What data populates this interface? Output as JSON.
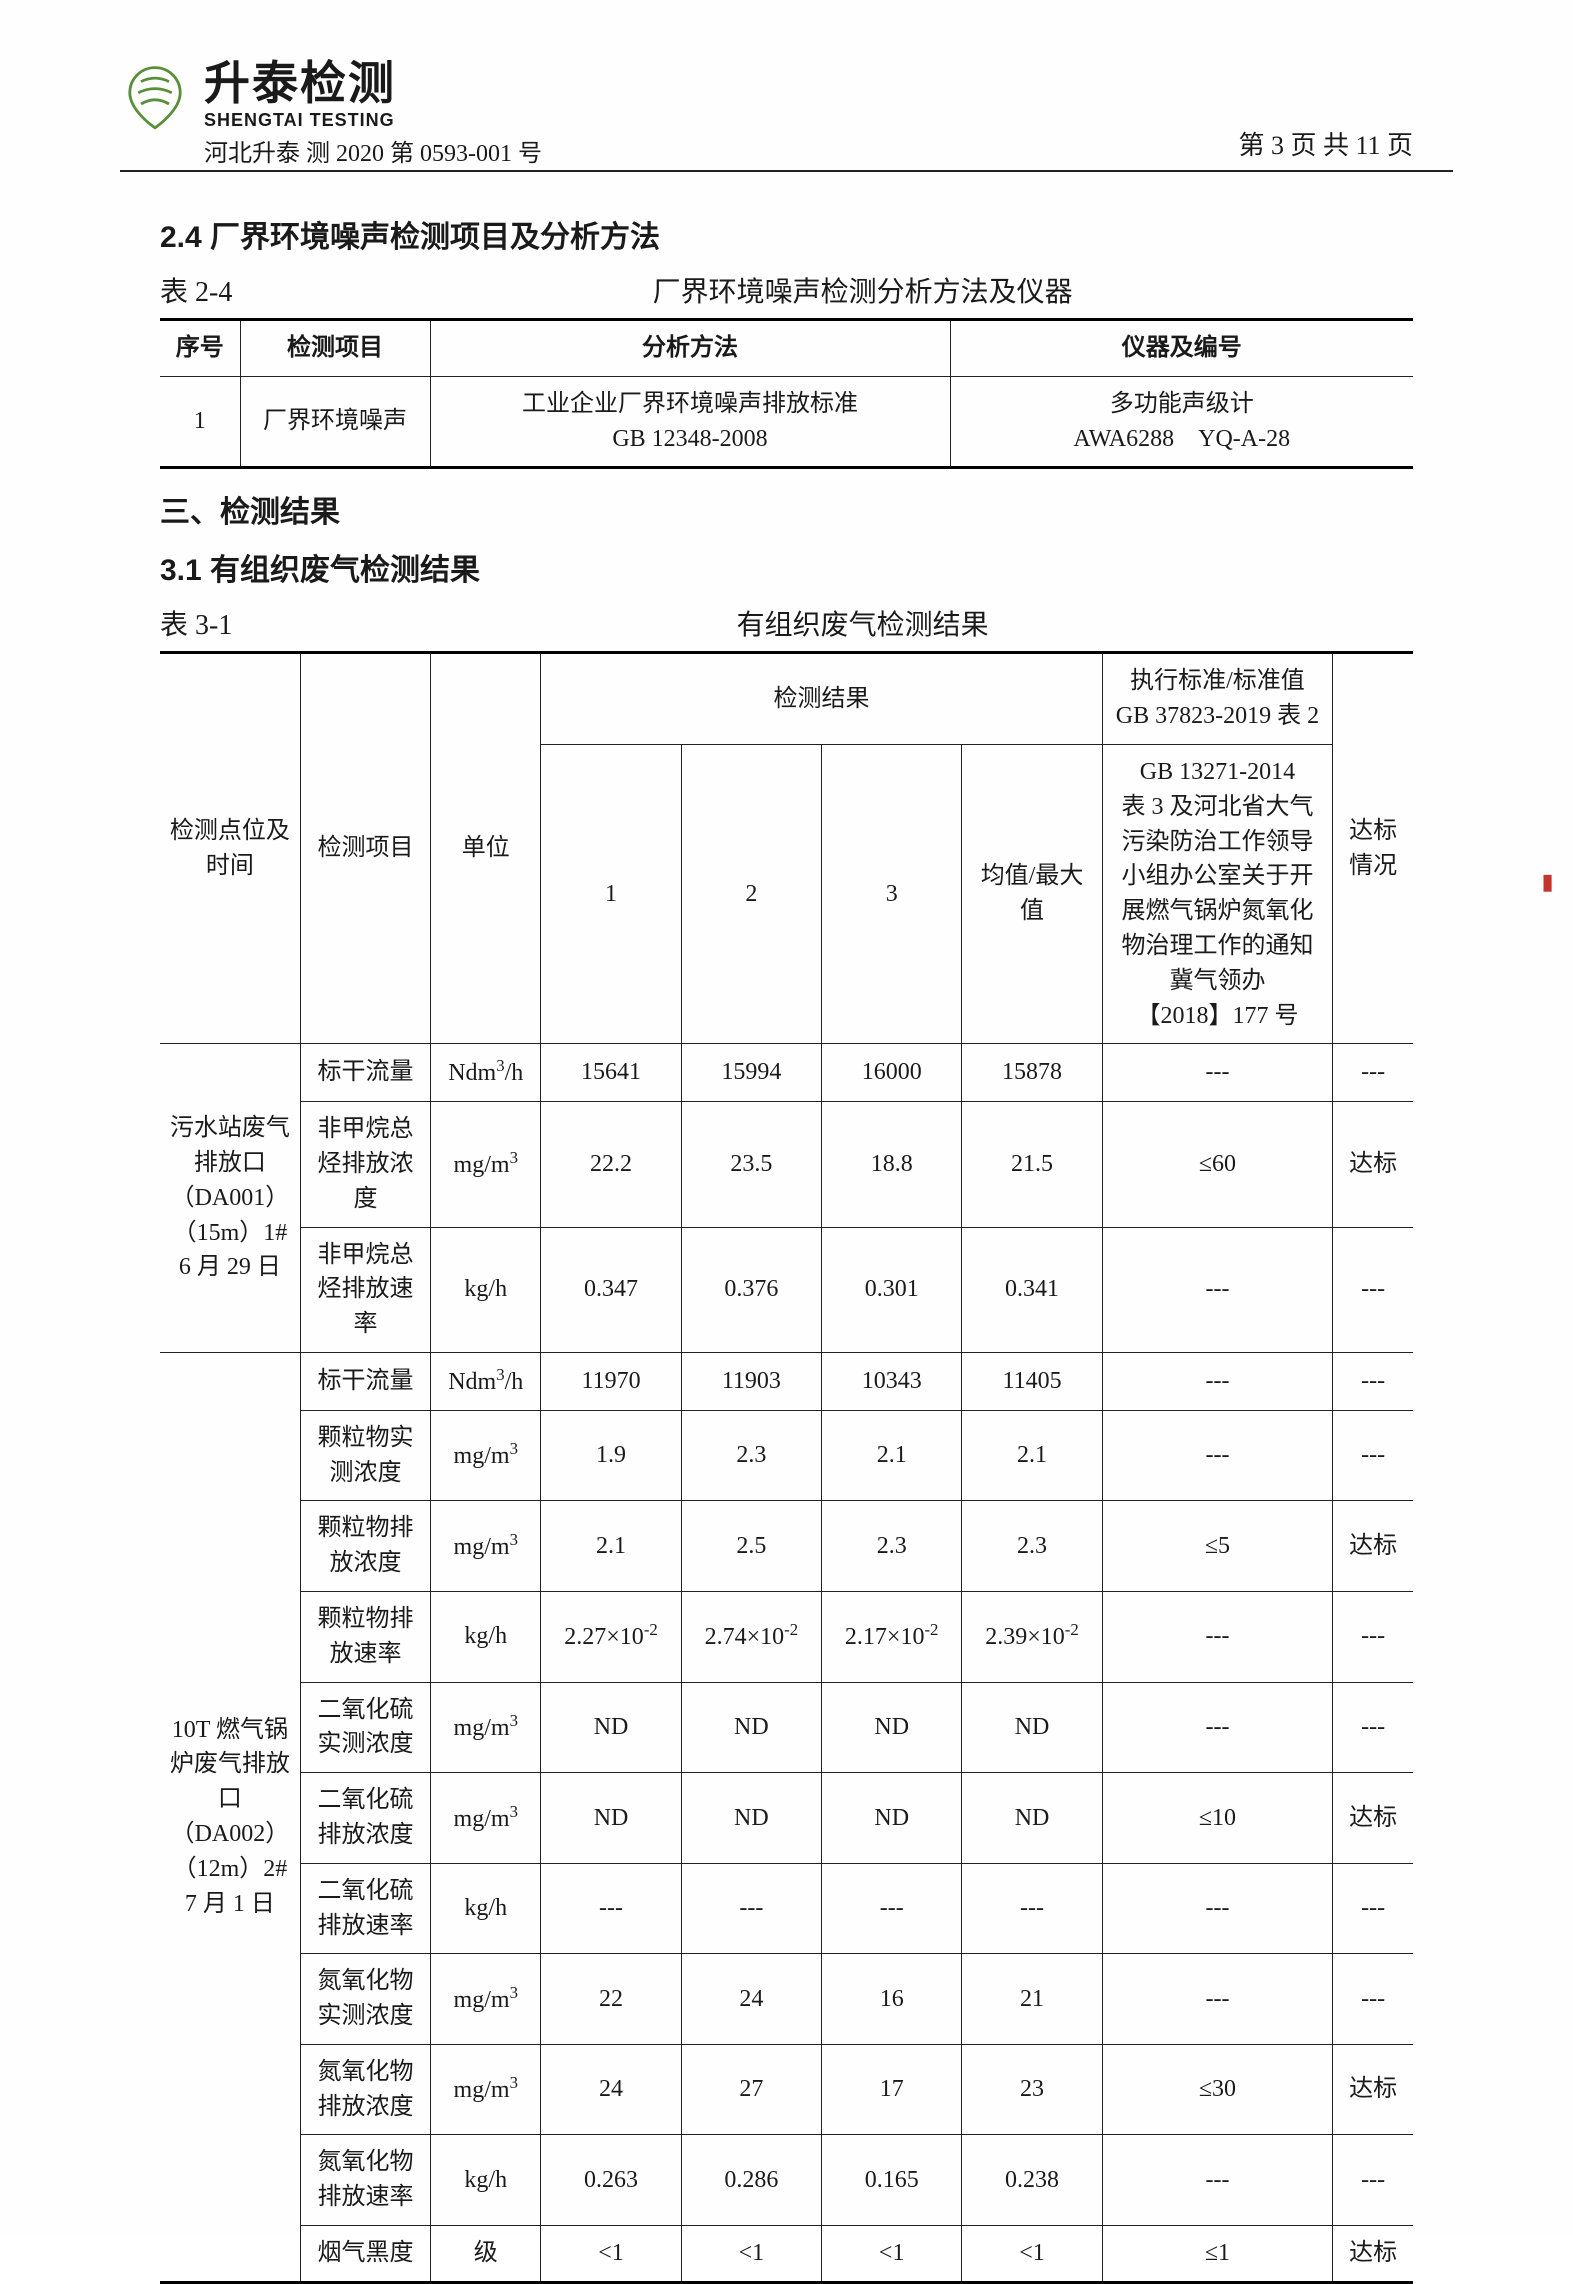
{
  "header": {
    "brand_cn": "升泰检测",
    "brand_en": "SHENGTAI TESTING",
    "doc_id": "河北升泰 测 2020 第 0593-001 号",
    "page_num": "第 3 页 共 11 页",
    "logo_color": "#5a8f3a"
  },
  "s24": {
    "heading": "2.4 厂界环境噪声检测项目及分析方法",
    "table_label": "表 2-4",
    "table_caption": "厂界环境噪声检测分析方法及仪器",
    "columns": [
      "序号",
      "检测项目",
      "分析方法",
      "仪器及编号"
    ],
    "row": {
      "no": "1",
      "item": "厂界环境噪声",
      "method_l1": "工业企业厂界环境噪声排放标准",
      "method_l2": "GB 12348-2008",
      "instr_l1": "多功能声级计",
      "instr_l2": "AWA6288　YQ-A-28"
    },
    "col_widths": [
      "80px",
      "190px",
      "520px",
      "auto"
    ]
  },
  "s3": {
    "heading": "三、检测结果",
    "sub": "3.1 有组织废气检测结果",
    "table_label": "表 3-1",
    "table_caption": "有组织废气检测结果",
    "col_widths": [
      "140px",
      "130px",
      "110px",
      "140px",
      "140px",
      "140px",
      "140px",
      "230px",
      "80px"
    ],
    "header": {
      "loc": "检测点位及时间",
      "item": "检测项目",
      "unit": "单位",
      "results": "检测结果",
      "c1": "1",
      "c2": "2",
      "c3": "3",
      "avg": "均值/最大值",
      "std_top": "执行标准/标准值\nGB 37823-2019 表 2",
      "std_body": "GB 13271-2014\n表 3 及河北省大气污染防治工作领导小组办公室关于开展燃气锅炉氮氧化物治理工作的通知冀气领办\n【2018】177 号",
      "compliance": "达标情况"
    },
    "group1": {
      "loc": "污水站废气排放口（DA001）（15m）1#\n6 月 29 日",
      "rows": [
        {
          "item": "标干流量",
          "unit": "Ndm³/h",
          "v": [
            "15641",
            "15994",
            "16000",
            "15878"
          ],
          "std": "---",
          "ok": "---"
        },
        {
          "item": "非甲烷总烃排放浓度",
          "unit": "mg/m³",
          "v": [
            "22.2",
            "23.5",
            "18.8",
            "21.5"
          ],
          "std": "≤60",
          "ok": "达标"
        },
        {
          "item": "非甲烷总烃排放速率",
          "unit": "kg/h",
          "v": [
            "0.347",
            "0.376",
            "0.301",
            "0.341"
          ],
          "std": "---",
          "ok": "---"
        }
      ]
    },
    "group2": {
      "loc": "10T 燃气锅炉废气排放口（DA002）（12m）2#\n7 月 1 日",
      "rows": [
        {
          "item": "标干流量",
          "unit": "Ndm³/h",
          "v": [
            "11970",
            "11903",
            "10343",
            "11405"
          ],
          "std": "---",
          "ok": "---"
        },
        {
          "item": "颗粒物实测浓度",
          "unit": "mg/m³",
          "v": [
            "1.9",
            "2.3",
            "2.1",
            "2.1"
          ],
          "std": "---",
          "ok": "---"
        },
        {
          "item": "颗粒物排放浓度",
          "unit": "mg/m³",
          "v": [
            "2.1",
            "2.5",
            "2.3",
            "2.3"
          ],
          "std": "≤5",
          "ok": "达标"
        },
        {
          "item": "颗粒物排放速率",
          "unit": "kg/h",
          "v": [
            "2.27×10⁻²",
            "2.74×10⁻²",
            "2.17×10⁻²",
            "2.39×10⁻²"
          ],
          "std": "---",
          "ok": "---"
        },
        {
          "item": "二氧化硫实测浓度",
          "unit": "mg/m³",
          "v": [
            "ND",
            "ND",
            "ND",
            "ND"
          ],
          "std": "---",
          "ok": "---"
        },
        {
          "item": "二氧化硫排放浓度",
          "unit": "mg/m³",
          "v": [
            "ND",
            "ND",
            "ND",
            "ND"
          ],
          "std": "≤10",
          "ok": "达标"
        },
        {
          "item": "二氧化硫排放速率",
          "unit": "kg/h",
          "v": [
            "---",
            "---",
            "---",
            "---"
          ],
          "std": "---",
          "ok": "---"
        },
        {
          "item": "氮氧化物实测浓度",
          "unit": "mg/m³",
          "v": [
            "22",
            "24",
            "16",
            "21"
          ],
          "std": "---",
          "ok": "---"
        },
        {
          "item": "氮氧化物排放浓度",
          "unit": "mg/m³",
          "v": [
            "24",
            "27",
            "17",
            "23"
          ],
          "std": "≤30",
          "ok": "达标"
        },
        {
          "item": "氮氧化物排放速率",
          "unit": "kg/h",
          "v": [
            "0.263",
            "0.286",
            "0.165",
            "0.238"
          ],
          "std": "---",
          "ok": "---"
        },
        {
          "item": "烟气黑度",
          "unit": "级",
          "v": [
            "<1",
            "<1",
            "<1",
            "<1"
          ],
          "std": "≤1",
          "ok": "达标"
        }
      ]
    }
  }
}
